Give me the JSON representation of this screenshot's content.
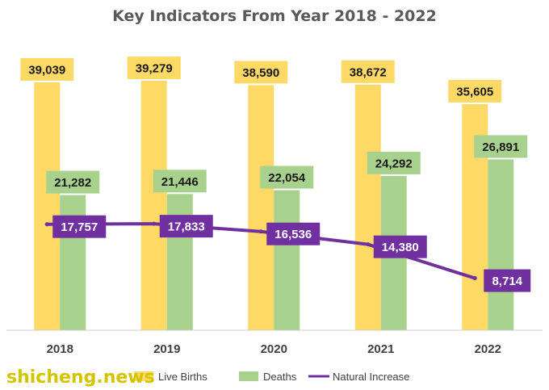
{
  "watermark": "shicheng.news",
  "chart_data": {
    "type": "bar",
    "title": "Key Indicators From Year 2018 - 2022",
    "categories": [
      "2018",
      "2019",
      "2020",
      "2021",
      "2022"
    ],
    "series": [
      {
        "name": "Live Births",
        "kind": "bar",
        "color": "#FFD966",
        "values": [
          39039,
          39279,
          38590,
          38672,
          35605
        ]
      },
      {
        "name": "Deaths",
        "kind": "bar",
        "color": "#A9D18E",
        "values": [
          21282,
          21446,
          22054,
          24292,
          26891
        ]
      },
      {
        "name": "Natural Increase",
        "kind": "line",
        "color": "#7030A0",
        "values": [
          17757,
          17833,
          16536,
          14380,
          8714
        ]
      }
    ],
    "value_labels": {
      "Live Births": [
        "39,039",
        "39,279",
        "38,590",
        "38,672",
        "35,605"
      ],
      "Deaths": [
        "21,282",
        "21,446",
        "22,054",
        "24,292",
        "26,891"
      ],
      "Natural Increase": [
        "17,757",
        "17,833",
        "16,536",
        "14,380",
        "8,714"
      ]
    },
    "ylim": [
      0,
      42000
    ],
    "grid": false,
    "legend": "bottom"
  }
}
